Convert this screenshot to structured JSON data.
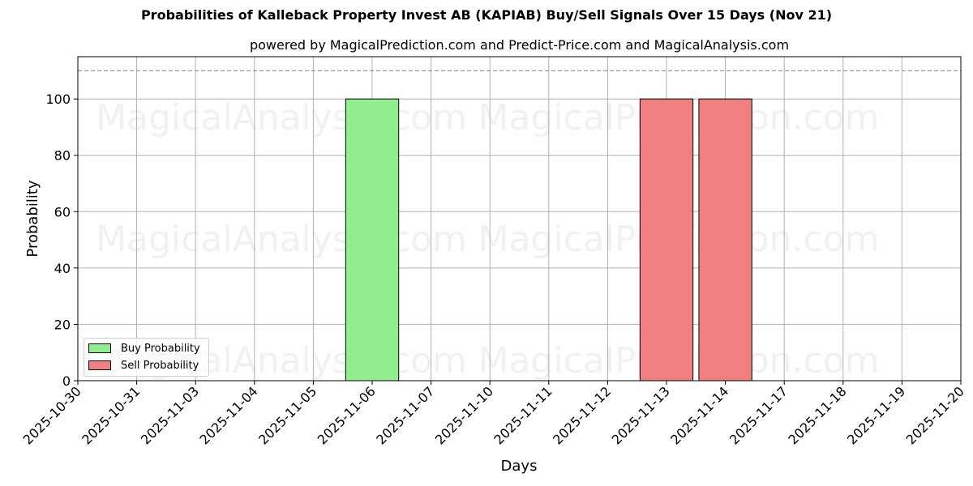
{
  "header": {
    "title": "Probabilities of Kalleback Property Invest AB (KAPIAB) Buy/Sell Signals Over 15 Days (Nov 21)",
    "subtitle": "powered by MagicalPrediction.com and Predict-Price.com and MagicalAnalysis.com"
  },
  "axes": {
    "xlabel": "Days",
    "ylabel": "Probability",
    "yticks": [
      "0",
      "20",
      "40",
      "60",
      "80",
      "100"
    ]
  },
  "legend": {
    "buy_label": "Buy Probability",
    "sell_label": "Sell Probability"
  },
  "watermarks": [
    "MagicalAnalysis.com",
    "MagicalPrediction.com"
  ],
  "colors": {
    "buy": "#90ee90",
    "sell": "#f08080",
    "threshold_line": "#808080",
    "grid": "#b0b0b0"
  },
  "chart_data": {
    "type": "bar",
    "title": "Probabilities of Kalleback Property Invest AB (KAPIAB) Buy/Sell Signals Over 15 Days (Nov 21)",
    "subtitle": "powered by MagicalPrediction.com and Predict-Price.com and MagicalAnalysis.com",
    "xlabel": "Days",
    "ylabel": "Probability",
    "ylim": [
      0,
      115
    ],
    "grid": true,
    "legend_position": "lower left",
    "threshold_line": 110,
    "categories": [
      "2025-10-30",
      "2025-10-31",
      "2025-11-03",
      "2025-11-04",
      "2025-11-05",
      "2025-11-06",
      "2025-11-07",
      "2025-11-10",
      "2025-11-11",
      "2025-11-12",
      "2025-11-13",
      "2025-11-14",
      "2025-11-17",
      "2025-11-18",
      "2025-11-19",
      "2025-11-20"
    ],
    "series": [
      {
        "name": "Buy Probability",
        "color": "#90ee90",
        "values": [
          0,
          0,
          0,
          0,
          0,
          100,
          0,
          0,
          0,
          0,
          0,
          0,
          0,
          0,
          0,
          0
        ]
      },
      {
        "name": "Sell Probability",
        "color": "#f08080",
        "values": [
          0,
          0,
          0,
          0,
          0,
          0,
          0,
          0,
          0,
          0,
          100,
          100,
          0,
          0,
          0,
          0
        ]
      }
    ]
  }
}
